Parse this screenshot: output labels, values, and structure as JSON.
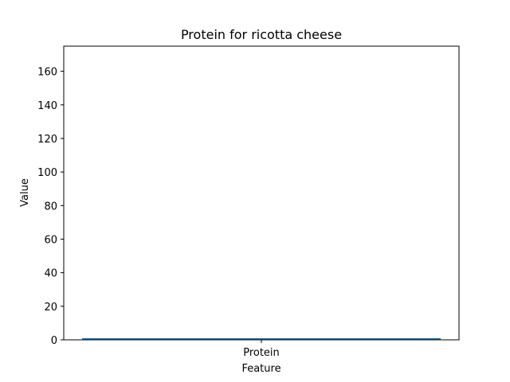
{
  "chart_data": {
    "type": "bar",
    "title": "Protein for ricotta cheese",
    "xlabel": "Feature",
    "ylabel": "Value",
    "categories": [
      "Protein"
    ],
    "values": [
      1
    ],
    "ylim": [
      0,
      175
    ],
    "yticks": [
      0,
      20,
      40,
      60,
      80,
      100,
      120,
      140,
      160
    ],
    "bar_color": "#1f77b4",
    "grid": false
  }
}
